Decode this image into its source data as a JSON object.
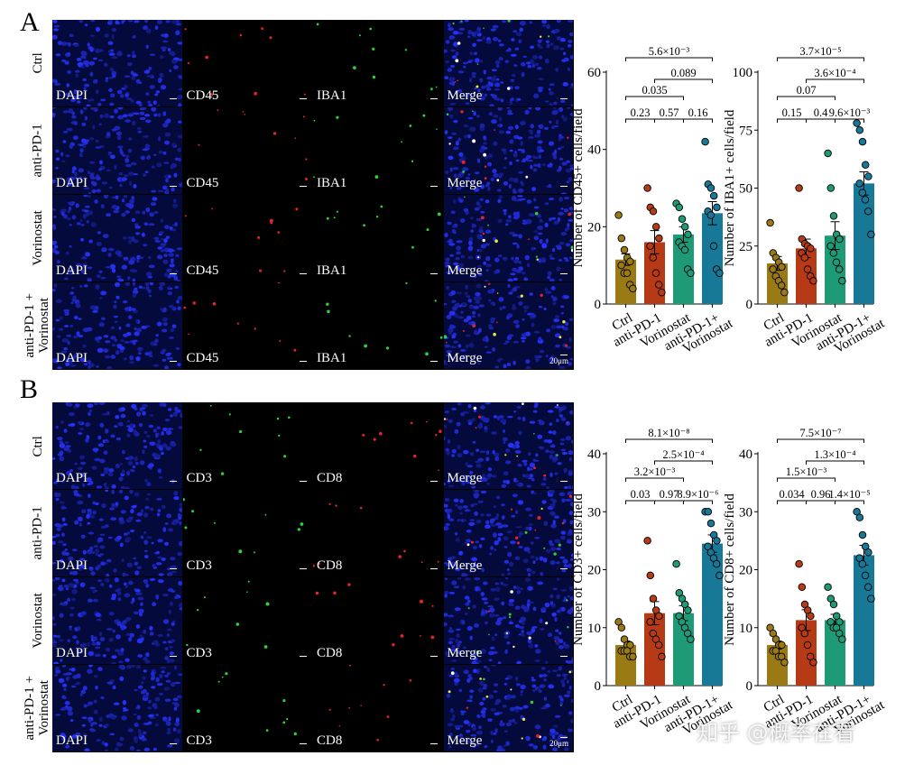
{
  "panels": [
    {
      "letter": "A",
      "rows": [
        "Ctrl",
        "anti-PD-1",
        "Vorinostat",
        "anti-PD-1 +\nVorinostat"
      ],
      "channels": [
        "DAPI",
        "CD45",
        "IBA1",
        "Merge"
      ],
      "channel_colors": [
        "#1a2fd6",
        "#e8222a",
        "#2bd23a",
        "#ffffff"
      ],
      "scale_bar": "20μm"
    },
    {
      "letter": "B",
      "rows": [
        "Ctrl",
        "anti-PD-1",
        "Vorinostat",
        "anti-PD-1 +\nVorinostat"
      ],
      "channels": [
        "DAPI",
        "CD3",
        "CD8",
        "Merge"
      ],
      "channel_colors": [
        "#1a2fd6",
        "#2bd23a",
        "#e8222a",
        "#ffffff"
      ],
      "scale_bar": "20μm"
    }
  ],
  "colors": {
    "ctrl": "#9a7a14",
    "pd1": "#b63a16",
    "vor": "#1f9a76",
    "combo": "#187898"
  },
  "chart_data": [
    {
      "type": "bar",
      "ylabel": "Number of CD45+ cells/field",
      "ylim": [
        0,
        60
      ],
      "yticks": [
        0,
        20,
        40,
        60
      ],
      "categories": [
        "Ctrl",
        "anti-PD-1",
        "Vorinostat",
        "anti-PD-1+\nVorinostat"
      ],
      "values": [
        11.5,
        16,
        18,
        23.5
      ],
      "errors": [
        1.5,
        3,
        2,
        3
      ],
      "points": [
        [
          23,
          17,
          14,
          12,
          11,
          10,
          8,
          8,
          5,
          4
        ],
        [
          30,
          25,
          24,
          20,
          17,
          15,
          12,
          8,
          5,
          3
        ],
        [
          26,
          25,
          22,
          20,
          18,
          16,
          15,
          14,
          9,
          8
        ],
        [
          42,
          31,
          30,
          28,
          25,
          24,
          23,
          15,
          9,
          8
        ]
      ],
      "comparisons": [
        {
          "from": 0,
          "to": 1,
          "label": "0.23"
        },
        {
          "from": 1,
          "to": 2,
          "label": "0.57"
        },
        {
          "from": 2,
          "to": 3,
          "label": "0.16"
        },
        {
          "from": 0,
          "to": 2,
          "label": "0.035"
        },
        {
          "from": 1,
          "to": 3,
          "label": "0.089"
        },
        {
          "from": 0,
          "to": 3,
          "label": "5.6×10⁻³"
        }
      ]
    },
    {
      "type": "bar",
      "ylabel": "Number of IBA1+ cells/field",
      "ylim": [
        0,
        100
      ],
      "yticks": [
        0,
        25,
        50,
        75,
        100
      ],
      "categories": [
        "Ctrl",
        "anti-PD-1",
        "Vorinostat",
        "anti-PD-1+\nVorinostat"
      ],
      "values": [
        17.5,
        24,
        29.5,
        52
      ],
      "errors": [
        3,
        4,
        6,
        5
      ],
      "points": [
        [
          35,
          22,
          20,
          18,
          16,
          15,
          12,
          10,
          8,
          5
        ],
        [
          50,
          28,
          26,
          25,
          24,
          22,
          20,
          15,
          12,
          10
        ],
        [
          65,
          50,
          38,
          30,
          28,
          25,
          22,
          18,
          15,
          10
        ],
        [
          78,
          75,
          70,
          60,
          55,
          52,
          48,
          45,
          40,
          30
        ]
      ],
      "comparisons": [
        {
          "from": 0,
          "to": 1,
          "label": "0.15"
        },
        {
          "from": 1,
          "to": 2,
          "label": "0.4"
        },
        {
          "from": 2,
          "to": 3,
          "label": "9.6×10⁻³"
        },
        {
          "from": 0,
          "to": 2,
          "label": "0.07"
        },
        {
          "from": 1,
          "to": 3,
          "label": "3.6×10⁻⁴"
        },
        {
          "from": 0,
          "to": 3,
          "label": "3.7×10⁻⁵"
        }
      ]
    },
    {
      "type": "bar",
      "ylabel": "Number of CD3+ cells/field",
      "ylim": [
        0,
        40
      ],
      "yticks": [
        0,
        10,
        20,
        30,
        40
      ],
      "categories": [
        "Ctrl",
        "anti-PD-1",
        "Vorinostat",
        "anti-PD-1+\nVorinostat"
      ],
      "values": [
        7,
        12.5,
        12.5,
        24.5
      ],
      "errors": [
        0.7,
        2,
        1.3,
        1.5
      ],
      "points": [
        [
          11,
          10,
          8,
          7,
          7,
          6,
          6,
          6,
          5,
          5
        ],
        [
          25,
          19,
          15,
          13,
          12,
          11,
          9,
          8,
          7,
          5
        ],
        [
          21,
          16,
          15,
          14,
          13,
          12,
          11,
          10,
          9,
          8
        ],
        [
          30,
          30,
          28,
          26,
          25,
          24,
          23,
          22,
          21,
          19
        ]
      ],
      "comparisons": [
        {
          "from": 0,
          "to": 1,
          "label": "0.03"
        },
        {
          "from": 1,
          "to": 2,
          "label": "0.97"
        },
        {
          "from": 2,
          "to": 3,
          "label": "8.9×10⁻⁶"
        },
        {
          "from": 0,
          "to": 2,
          "label": "3.2×10⁻³"
        },
        {
          "from": 1,
          "to": 3,
          "label": "2.5×10⁻⁴"
        },
        {
          "from": 0,
          "to": 3,
          "label": "8.1×10⁻⁸"
        }
      ]
    },
    {
      "type": "bar",
      "ylabel": "Number of CD8+ cells/field",
      "ylim": [
        0,
        40
      ],
      "yticks": [
        0,
        10,
        20,
        30,
        40
      ],
      "categories": [
        "Ctrl",
        "anti-PD-1",
        "Vorinostat",
        "anti-PD-1+\nVorinostat"
      ],
      "values": [
        7,
        11.3,
        11.3,
        22.5
      ],
      "errors": [
        0.7,
        1.8,
        1,
        1.7
      ],
      "points": [
        [
          10,
          9,
          8,
          7,
          7,
          6,
          6,
          5,
          5,
          4
        ],
        [
          21,
          17,
          14,
          13,
          12,
          10,
          9,
          7,
          5,
          4
        ],
        [
          17,
          15,
          14,
          12,
          11,
          11,
          10,
          10,
          9,
          8
        ],
        [
          30,
          29,
          26,
          24,
          23,
          22,
          21,
          19,
          17,
          15
        ]
      ],
      "comparisons": [
        {
          "from": 0,
          "to": 1,
          "label": "0.034"
        },
        {
          "from": 1,
          "to": 2,
          "label": "0.96"
        },
        {
          "from": 2,
          "to": 3,
          "label": "1.4×10⁻⁵"
        },
        {
          "from": 0,
          "to": 2,
          "label": "1.5×10⁻³"
        },
        {
          "from": 1,
          "to": 3,
          "label": "1.3×10⁻⁴"
        },
        {
          "from": 0,
          "to": 3,
          "label": "7.5×10⁻⁷"
        }
      ]
    }
  ],
  "watermark": "知乎 @概率在看"
}
